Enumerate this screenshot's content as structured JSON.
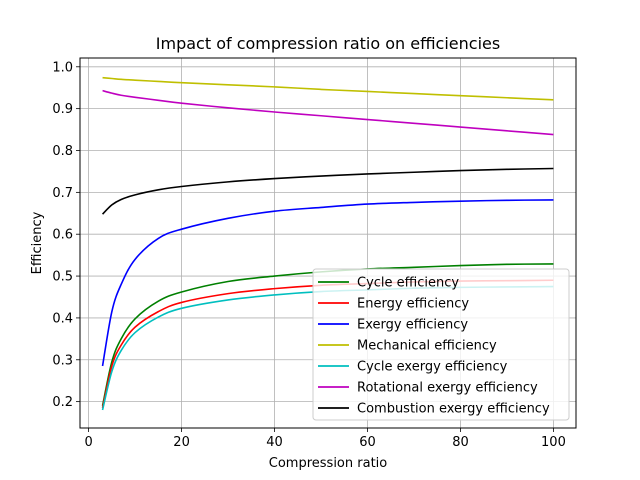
{
  "chart_data": {
    "type": "line",
    "title": "Impact of compression ratio on efficiencies",
    "xlabel": "Compression ratio",
    "ylabel": "Efficiency",
    "xlim": [
      -1.85,
      104.85
    ],
    "ylim": [
      0.137,
      1.021
    ],
    "xticks": [
      0,
      20,
      40,
      60,
      80,
      100
    ],
    "yticks": [
      0.2,
      0.3,
      0.4,
      0.5,
      0.6,
      0.7,
      0.8,
      0.9,
      1.0
    ],
    "ytick_labels": [
      "0.2",
      "0.3",
      "0.4",
      "0.5",
      "0.6",
      "0.7",
      "0.8",
      "0.9",
      "1.0"
    ],
    "grid": true,
    "legend_position": "lower-right",
    "x": [
      3,
      5,
      7,
      10,
      15,
      20,
      30,
      40,
      50,
      60,
      70,
      80,
      90,
      100
    ],
    "series": [
      {
        "name": "Cycle efficiency",
        "color": "#008000",
        "values": [
          0.19,
          0.295,
          0.35,
          0.398,
          0.44,
          0.462,
          0.487,
          0.5,
          0.51,
          0.517,
          0.521,
          0.525,
          0.528,
          0.529
        ]
      },
      {
        "name": "Energy efficiency",
        "color": "#ff0000",
        "values": [
          0.185,
          0.285,
          0.335,
          0.378,
          0.415,
          0.437,
          0.458,
          0.47,
          0.478,
          0.482,
          0.486,
          0.488,
          0.489,
          0.49
        ]
      },
      {
        "name": "Exergy efficiency",
        "color": "#0000ff",
        "values": [
          0.285,
          0.415,
          0.48,
          0.54,
          0.59,
          0.612,
          0.638,
          0.655,
          0.664,
          0.672,
          0.676,
          0.679,
          0.681,
          0.682
        ]
      },
      {
        "name": "Mechanical efficiency",
        "color": "#bfbf00",
        "values": [
          0.974,
          0.972,
          0.97,
          0.968,
          0.965,
          0.962,
          0.957,
          0.952,
          0.946,
          0.941,
          0.936,
          0.931,
          0.926,
          0.921
        ]
      },
      {
        "name": "Cycle exergy efficiency",
        "color": "#00bfbf",
        "values": [
          0.18,
          0.272,
          0.322,
          0.365,
          0.402,
          0.423,
          0.443,
          0.455,
          0.463,
          0.467,
          0.471,
          0.473,
          0.474,
          0.475
        ]
      },
      {
        "name": "Rotational exergy efficiency",
        "color": "#bf00bf",
        "values": [
          0.943,
          0.937,
          0.932,
          0.927,
          0.92,
          0.913,
          0.902,
          0.892,
          0.883,
          0.874,
          0.865,
          0.856,
          0.847,
          0.838
        ]
      },
      {
        "name": "Combustion exergy efficiency",
        "color": "#000000",
        "values": [
          0.648,
          0.67,
          0.683,
          0.694,
          0.706,
          0.714,
          0.725,
          0.733,
          0.739,
          0.744,
          0.748,
          0.752,
          0.755,
          0.757
        ]
      }
    ]
  }
}
